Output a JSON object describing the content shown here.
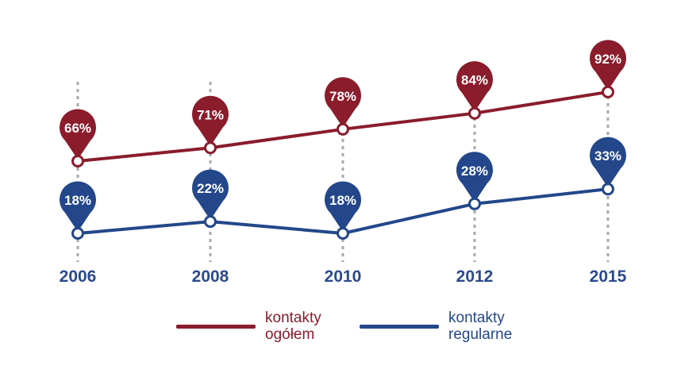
{
  "colors": {
    "total": "#8a1c2b",
    "regular": "#23478a",
    "axis": "#2b4a8e",
    "grid": "#a8a8a8"
  },
  "legend": {
    "total": {
      "line1": "kontakty",
      "line2": "ogółem"
    },
    "regular": {
      "line1": "kontakty",
      "line2": "regularne"
    }
  },
  "chart_data": {
    "type": "line",
    "categories": [
      "2006",
      "2008",
      "2010",
      "2012",
      "2015"
    ],
    "grid": "vertical dashed lines at each year",
    "legend_position": "bottom",
    "series": [
      {
        "name": "kontakty ogółem",
        "values": [
          66,
          71,
          78,
          84,
          92
        ],
        "labels": [
          "66%",
          "71%",
          "78%",
          "84%",
          "92%"
        ]
      },
      {
        "name": "kontakty regularne",
        "values": [
          18,
          22,
          18,
          28,
          33
        ],
        "labels": [
          "18%",
          "22%",
          "18%",
          "28%",
          "33%"
        ]
      }
    ]
  }
}
